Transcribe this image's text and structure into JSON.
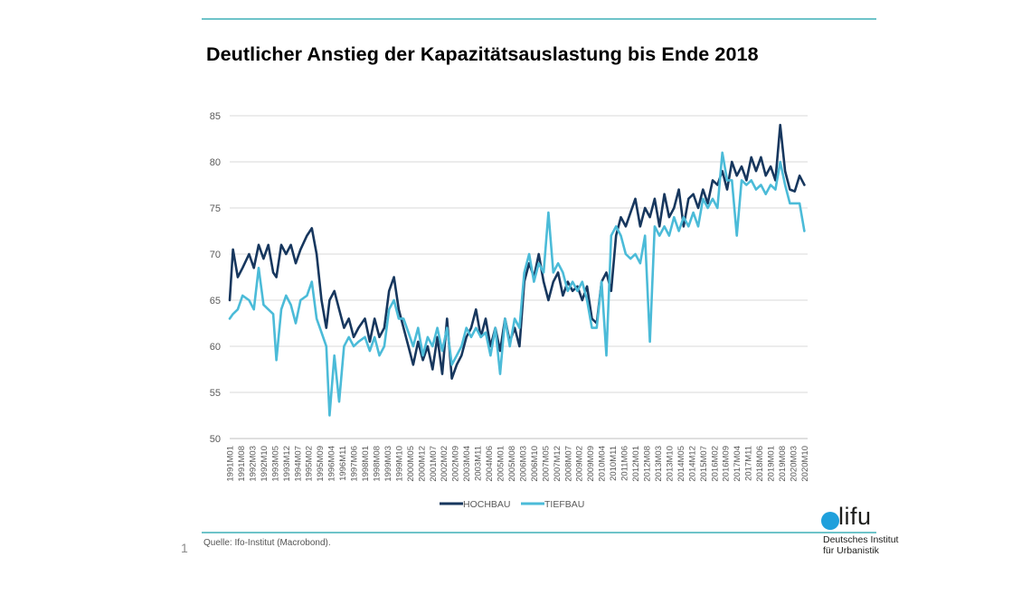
{
  "page": {
    "title": "Deutlicher Anstieg der Kapazitätsauslastung bis Ende 2018",
    "page_number": "1",
    "source": "Quelle: Ifo-Institut (Macrobond).",
    "logo": {
      "word": "lifu",
      "line1": "Deutsches Institut",
      "line2": "für Urbanistik",
      "dot_color": "#1fa0dc"
    },
    "rule_color": "#6ec3c9"
  },
  "chart_data": {
    "type": "line",
    "title": "Deutlicher Anstieg der Kapazitätsauslastung bis Ende 2018",
    "xlabel": "",
    "ylabel": "",
    "ylim": [
      50,
      85
    ],
    "yticks": [
      50,
      55,
      60,
      65,
      70,
      75,
      80,
      85
    ],
    "grid": true,
    "legend": "bottom-center",
    "x_start": "1991M01",
    "x_end": "2020M12",
    "x_ticks": [
      "1991M01",
      "1991M08",
      "1992M03",
      "1992M10",
      "1993M05",
      "1993M12",
      "1994M07",
      "1995M02",
      "1995M09",
      "1996M04",
      "1996M11",
      "1997M06",
      "1998M01",
      "1998M08",
      "1999M03",
      "1999M10",
      "2000M05",
      "2000M12",
      "2001M07",
      "2002M02",
      "2002M09",
      "2003M04",
      "2003M11",
      "2004M06",
      "2005M01",
      "2005M08",
      "2006M03",
      "2006M10",
      "2007M05",
      "2007M12",
      "2008M07",
      "2009M02",
      "2009M09",
      "2010M04",
      "2010M11",
      "2011M06",
      "2012M01",
      "2012M08",
      "2013M03",
      "2013M10",
      "2014M05",
      "2014M12",
      "2015M07",
      "2016M02",
      "2016M09",
      "2017M04",
      "2017M11",
      "2018M06",
      "2019M01",
      "2019M08",
      "2020M03",
      "2020M10"
    ],
    "series": [
      {
        "name": "HOCHBAU",
        "color": "#17375e",
        "points": [
          [
            "1991M01",
            65
          ],
          [
            "1991M03",
            70.5
          ],
          [
            "1991M06",
            67.5
          ],
          [
            "1991M09",
            68.5
          ],
          [
            "1992M01",
            70
          ],
          [
            "1992M04",
            68.5
          ],
          [
            "1992M07",
            71
          ],
          [
            "1992M10",
            69.5
          ],
          [
            "1993M01",
            71
          ],
          [
            "1993M04",
            68
          ],
          [
            "1993M06",
            67.5
          ],
          [
            "1993M09",
            71
          ],
          [
            "1993M12",
            70
          ],
          [
            "1994M03",
            71
          ],
          [
            "1994M06",
            69
          ],
          [
            "1994M09",
            70.5
          ],
          [
            "1995M01",
            72
          ],
          [
            "1995M04",
            72.8
          ],
          [
            "1995M07",
            70
          ],
          [
            "1995M10",
            65
          ],
          [
            "1996M01",
            62
          ],
          [
            "1996M03",
            65
          ],
          [
            "1996M06",
            66
          ],
          [
            "1996M09",
            64
          ],
          [
            "1996M12",
            62
          ],
          [
            "1997M03",
            63
          ],
          [
            "1997M06",
            61
          ],
          [
            "1997M09",
            62
          ],
          [
            "1998M01",
            63
          ],
          [
            "1998M04",
            60.5
          ],
          [
            "1998M07",
            63
          ],
          [
            "1998M10",
            61
          ],
          [
            "1999M01",
            62
          ],
          [
            "1999M04",
            66
          ],
          [
            "1999M07",
            67.5
          ],
          [
            "1999M10",
            64
          ],
          [
            "2000M01",
            62
          ],
          [
            "2000M04",
            60
          ],
          [
            "2000M07",
            58
          ],
          [
            "2000M10",
            60.5
          ],
          [
            "2001M01",
            58.5
          ],
          [
            "2001M04",
            60
          ],
          [
            "2001M07",
            57.5
          ],
          [
            "2001M10",
            61
          ],
          [
            "2002M01",
            57
          ],
          [
            "2002M04",
            63
          ],
          [
            "2002M07",
            56.5
          ],
          [
            "2002M10",
            58
          ],
          [
            "2003M01",
            59
          ],
          [
            "2003M04",
            61
          ],
          [
            "2003M07",
            62
          ],
          [
            "2003M10",
            64
          ],
          [
            "2004M01",
            61
          ],
          [
            "2004M04",
            63
          ],
          [
            "2004M07",
            60
          ],
          [
            "2004M10",
            62
          ],
          [
            "2005M01",
            59.5
          ],
          [
            "2005M04",
            63
          ],
          [
            "2005M07",
            60.5
          ],
          [
            "2005M10",
            62
          ],
          [
            "2006M01",
            60
          ],
          [
            "2006M04",
            67
          ],
          [
            "2006M07",
            69
          ],
          [
            "2006M10",
            67.5
          ],
          [
            "2007M01",
            70
          ],
          [
            "2007M04",
            67
          ],
          [
            "2007M07",
            65
          ],
          [
            "2007M10",
            67
          ],
          [
            "2008M01",
            68
          ],
          [
            "2008M04",
            65.5
          ],
          [
            "2008M07",
            67
          ],
          [
            "2008M10",
            66
          ],
          [
            "2009M01",
            66.5
          ],
          [
            "2009M04",
            65
          ],
          [
            "2009M07",
            66.5
          ],
          [
            "2009M10",
            63
          ],
          [
            "2010M01",
            62.5
          ],
          [
            "2010M04",
            67
          ],
          [
            "2010M07",
            68
          ],
          [
            "2010M10",
            66
          ],
          [
            "2011M01",
            72
          ],
          [
            "2011M04",
            74
          ],
          [
            "2011M07",
            73
          ],
          [
            "2011M10",
            74.5
          ],
          [
            "2012M01",
            76
          ],
          [
            "2012M04",
            73
          ],
          [
            "2012M07",
            75
          ],
          [
            "2012M10",
            74
          ],
          [
            "2013M01",
            76
          ],
          [
            "2013M04",
            73
          ],
          [
            "2013M07",
            76.5
          ],
          [
            "2013M10",
            74
          ],
          [
            "2014M01",
            75
          ],
          [
            "2014M04",
            77
          ],
          [
            "2014M07",
            73
          ],
          [
            "2014M10",
            76
          ],
          [
            "2015M01",
            76.5
          ],
          [
            "2015M04",
            75
          ],
          [
            "2015M07",
            77
          ],
          [
            "2015M10",
            75.5
          ],
          [
            "2016M01",
            78
          ],
          [
            "2016M04",
            77.5
          ],
          [
            "2016M07",
            79
          ],
          [
            "2016M10",
            77
          ],
          [
            "2017M01",
            80
          ],
          [
            "2017M04",
            78.5
          ],
          [
            "2017M07",
            79.5
          ],
          [
            "2017M10",
            78
          ],
          [
            "2018M01",
            80.5
          ],
          [
            "2018M04",
            79
          ],
          [
            "2018M07",
            80.5
          ],
          [
            "2018M10",
            78.5
          ],
          [
            "2019M01",
            79.5
          ],
          [
            "2019M04",
            78
          ],
          [
            "2019M07",
            84
          ],
          [
            "2019M10",
            79
          ],
          [
            "2020M01",
            77
          ],
          [
            "2020M04",
            76.8
          ],
          [
            "2020M07",
            78.5
          ],
          [
            "2020M10",
            77.5
          ]
        ]
      },
      {
        "name": "TIEFBAU",
        "color": "#4bbbd8",
        "points": [
          [
            "1991M01",
            63
          ],
          [
            "1991M03",
            63.5
          ],
          [
            "1991M06",
            64
          ],
          [
            "1991M09",
            65.5
          ],
          [
            "1992M01",
            65
          ],
          [
            "1992M04",
            64
          ],
          [
            "1992M07",
            68.5
          ],
          [
            "1992M10",
            64.5
          ],
          [
            "1993M01",
            64
          ],
          [
            "1993M04",
            63.5
          ],
          [
            "1993M06",
            58.5
          ],
          [
            "1993M09",
            64
          ],
          [
            "1993M12",
            65.5
          ],
          [
            "1994M03",
            64.5
          ],
          [
            "1994M06",
            62.5
          ],
          [
            "1994M09",
            65
          ],
          [
            "1995M01",
            65.5
          ],
          [
            "1995M04",
            67
          ],
          [
            "1995M07",
            63
          ],
          [
            "1995M10",
            61.5
          ],
          [
            "1996M01",
            60
          ],
          [
            "1996M03",
            52.5
          ],
          [
            "1996M06",
            59
          ],
          [
            "1996M09",
            54
          ],
          [
            "1996M12",
            60
          ],
          [
            "1997M03",
            61
          ],
          [
            "1997M06",
            60
          ],
          [
            "1997M09",
            60.5
          ],
          [
            "1998M01",
            61
          ],
          [
            "1998M04",
            59.5
          ],
          [
            "1998M07",
            61
          ],
          [
            "1998M10",
            59
          ],
          [
            "1999M01",
            60
          ],
          [
            "1999M04",
            64
          ],
          [
            "1999M07",
            65
          ],
          [
            "1999M10",
            63
          ],
          [
            "2000M01",
            63
          ],
          [
            "2000M04",
            61.5
          ],
          [
            "2000M07",
            60
          ],
          [
            "2000M10",
            62
          ],
          [
            "2001M01",
            59
          ],
          [
            "2001M04",
            61
          ],
          [
            "2001M07",
            60
          ],
          [
            "2001M10",
            62
          ],
          [
            "2002M01",
            59.5
          ],
          [
            "2002M04",
            62
          ],
          [
            "2002M07",
            58
          ],
          [
            "2002M10",
            59
          ],
          [
            "2003M01",
            60
          ],
          [
            "2003M04",
            62
          ],
          [
            "2003M07",
            61
          ],
          [
            "2003M10",
            62
          ],
          [
            "2004M01",
            61
          ],
          [
            "2004M04",
            61.5
          ],
          [
            "2004M07",
            59
          ],
          [
            "2004M10",
            62
          ],
          [
            "2005M01",
            57
          ],
          [
            "2005M04",
            63
          ],
          [
            "2005M07",
            60
          ],
          [
            "2005M10",
            63
          ],
          [
            "2006M01",
            62
          ],
          [
            "2006M04",
            68
          ],
          [
            "2006M07",
            70
          ],
          [
            "2006M10",
            67
          ],
          [
            "2007M01",
            69
          ],
          [
            "2007M04",
            68
          ],
          [
            "2007M07",
            74.5
          ],
          [
            "2007M10",
            68
          ],
          [
            "2008M01",
            69
          ],
          [
            "2008M04",
            68
          ],
          [
            "2008M07",
            66
          ],
          [
            "2008M10",
            67
          ],
          [
            "2009M01",
            66
          ],
          [
            "2009M04",
            67
          ],
          [
            "2009M07",
            65
          ],
          [
            "2009M10",
            62
          ],
          [
            "2010M01",
            62
          ],
          [
            "2010M04",
            67
          ],
          [
            "2010M07",
            59
          ],
          [
            "2010M10",
            72
          ],
          [
            "2011M01",
            73
          ],
          [
            "2011M04",
            72
          ],
          [
            "2011M07",
            70
          ],
          [
            "2011M10",
            69.5
          ],
          [
            "2012M01",
            70
          ],
          [
            "2012M04",
            69
          ],
          [
            "2012M07",
            72
          ],
          [
            "2012M10",
            60.5
          ],
          [
            "2013M01",
            73
          ],
          [
            "2013M04",
            72
          ],
          [
            "2013M07",
            73
          ],
          [
            "2013M10",
            72
          ],
          [
            "2014M01",
            74
          ],
          [
            "2014M04",
            72.5
          ],
          [
            "2014M07",
            74
          ],
          [
            "2014M10",
            73
          ],
          [
            "2015M01",
            74.5
          ],
          [
            "2015M04",
            73
          ],
          [
            "2015M07",
            76
          ],
          [
            "2015M10",
            75
          ],
          [
            "2016M01",
            76
          ],
          [
            "2016M04",
            75
          ],
          [
            "2016M07",
            81
          ],
          [
            "2016M10",
            78
          ],
          [
            "2017M01",
            78
          ],
          [
            "2017M04",
            72
          ],
          [
            "2017M07",
            78
          ],
          [
            "2017M10",
            77.5
          ],
          [
            "2018M01",
            78
          ],
          [
            "2018M04",
            77
          ],
          [
            "2018M07",
            77.5
          ],
          [
            "2018M10",
            76.5
          ],
          [
            "2019M01",
            77.5
          ],
          [
            "2019M04",
            77
          ],
          [
            "2019M07",
            80
          ],
          [
            "2019M10",
            77.5
          ],
          [
            "2020M01",
            75.5
          ],
          [
            "2020M04",
            75.5
          ],
          [
            "2020M07",
            75.5
          ],
          [
            "2020M10",
            72.5
          ]
        ]
      }
    ]
  }
}
